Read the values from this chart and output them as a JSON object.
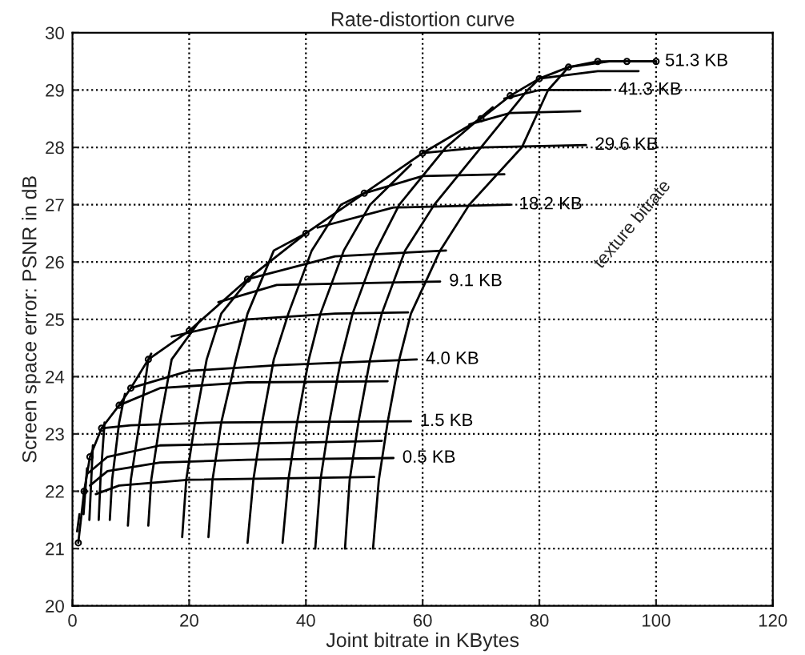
{
  "chart_data": {
    "type": "line",
    "title": "Rate-distortion curve",
    "xlabel": "Joint bitrate in KBytes",
    "ylabel": "Screen space error: PSNR in dB",
    "xlim": [
      0,
      120
    ],
    "ylim": [
      20,
      30
    ],
    "xticks": [
      0,
      20,
      40,
      60,
      80,
      100,
      120
    ],
    "yticks": [
      20,
      21,
      22,
      23,
      24,
      25,
      26,
      27,
      28,
      29,
      30
    ],
    "grid": true,
    "legend": false,
    "series": [
      {
        "color": "#000000",
        "marker": "circle",
        "x": [
          1,
          2,
          3,
          5,
          8,
          10,
          13,
          20,
          30,
          40,
          50,
          60,
          70,
          75,
          80,
          85,
          90,
          95,
          100
        ],
        "values": [
          21.1,
          22,
          22.6,
          23.1,
          23.5,
          23.8,
          24.3,
          24.8,
          25.7,
          26.5,
          27.2,
          27.9,
          28.5,
          28.9,
          29.2,
          29.4,
          29.5,
          29.5,
          29.5
        ]
      },
      {
        "color": "#000000",
        "x": [
          4,
          8,
          20,
          51.7
        ],
        "values": [
          21.95,
          22.1,
          22.2,
          22.25
        ]
      },
      {
        "name": "0.5 KB",
        "color": "#000000",
        "x": [
          3,
          6,
          15,
          30,
          55
        ],
        "values": [
          22.1,
          22.35,
          22.5,
          22.55,
          22.58
        ]
      },
      {
        "color": "#000000",
        "x": [
          2.5,
          6,
          15,
          53
        ],
        "values": [
          22.3,
          22.6,
          22.8,
          22.88
        ]
      },
      {
        "name": "1.5 KB",
        "color": "#000000",
        "x": [
          5,
          10,
          25,
          58
        ],
        "values": [
          23.1,
          23.15,
          23.2,
          23.22
        ]
      },
      {
        "color": "#000000",
        "x": [
          8,
          15,
          30,
          54
        ],
        "values": [
          23.5,
          23.8,
          23.9,
          23.92
        ]
      },
      {
        "name": "4.0 KB",
        "color": "#000000",
        "x": [
          10,
          20,
          35,
          59
        ],
        "values": [
          23.8,
          24.1,
          24.2,
          24.3
        ]
      },
      {
        "color": "#000000",
        "x": [
          17,
          30,
          45,
          57.5
        ],
        "values": [
          24.7,
          25.0,
          25.1,
          25.12
        ]
      },
      {
        "name": "9.1 KB",
        "color": "#000000",
        "x": [
          25,
          35,
          63
        ],
        "values": [
          25.3,
          25.6,
          25.66
        ]
      },
      {
        "color": "#000000",
        "x": [
          30,
          45,
          64
        ],
        "values": [
          25.7,
          26.1,
          26.2
        ]
      },
      {
        "name": "18.2 KB",
        "color": "#000000",
        "x": [
          42,
          55,
          75
        ],
        "values": [
          26.6,
          26.95,
          27.0
        ]
      },
      {
        "color": "#000000",
        "x": [
          50,
          60,
          74
        ],
        "values": [
          27.2,
          27.5,
          27.53
        ]
      },
      {
        "name": "29.6 KB",
        "color": "#000000",
        "x": [
          60,
          70,
          88
        ],
        "values": [
          27.9,
          28.0,
          28.04
        ]
      },
      {
        "color": "#000000",
        "x": [
          68,
          75,
          87
        ],
        "values": [
          28.4,
          28.6,
          28.63
        ]
      },
      {
        "name": "41.3 KB",
        "color": "#000000",
        "x": [
          74,
          80,
          92
        ],
        "values": [
          28.85,
          29.0,
          29.0
        ]
      },
      {
        "color": "#000000",
        "x": [
          80,
          90,
          97
        ],
        "values": [
          29.2,
          29.33,
          29.33
        ]
      },
      {
        "name": "51.3 KB",
        "color": "#000000",
        "x": [
          85,
          92,
          100
        ],
        "values": [
          29.4,
          29.5,
          29.5
        ]
      },
      {
        "color": "#000000",
        "x": [
          51.5,
          52.5,
          54,
          56,
          58,
          63,
          68,
          77,
          81.5,
          85
        ],
        "values": [
          21.0,
          22.2,
          23.2,
          24.3,
          25.1,
          26.2,
          27.0,
          28.0,
          29.0,
          29.4
        ]
      },
      {
        "color": "#000000",
        "x": [
          46.7,
          47.5,
          49,
          51,
          53,
          57,
          62,
          70,
          78,
          80
        ],
        "values": [
          21.0,
          22.2,
          23.2,
          24.3,
          25.1,
          26.2,
          27.0,
          28.0,
          29.0,
          29.2
        ]
      },
      {
        "color": "#000000",
        "x": [
          41.6,
          42.5,
          44,
          46,
          48,
          52,
          56,
          64,
          72
        ],
        "values": [
          21.0,
          22.2,
          23.2,
          24.3,
          25.1,
          26.2,
          27.0,
          28.0,
          28.7
        ]
      },
      {
        "color": "#000000",
        "x": [
          36,
          37,
          38.5,
          40.5,
          42.5,
          46.5,
          51,
          58
        ],
        "values": [
          21.1,
          22.2,
          23.2,
          24.3,
          25.1,
          26.2,
          27.0,
          27.7
        ]
      },
      {
        "color": "#000000",
        "x": [
          30,
          31,
          32.5,
          34.5,
          37,
          41,
          46,
          50
        ],
        "values": [
          21.1,
          22.2,
          23.2,
          24.3,
          25.1,
          26.2,
          27.0,
          27.2
        ]
      },
      {
        "color": "#000000",
        "x": [
          23.3,
          24,
          25.5,
          28,
          30,
          34.5,
          40
        ],
        "values": [
          21.2,
          22.2,
          23.2,
          24.3,
          25.1,
          26.2,
          26.5
        ]
      },
      {
        "color": "#000000",
        "x": [
          18.8,
          19.5,
          21,
          23,
          25.5,
          31
        ],
        "values": [
          21.2,
          22.2,
          23.2,
          24.3,
          25.1,
          25.8
        ]
      },
      {
        "color": "#000000",
        "x": [
          13,
          13.5,
          15,
          17,
          22
        ],
        "values": [
          21.4,
          22.2,
          23.2,
          24.3,
          25.0
        ]
      },
      {
        "color": "#000000",
        "x": [
          9.5,
          10,
          11.5,
          13,
          13.5
        ],
        "values": [
          21.4,
          22.2,
          23.2,
          24.3,
          24.4
        ]
      },
      {
        "color": "#000000",
        "x": [
          6.4,
          6.8,
          8,
          9
        ],
        "values": [
          21.5,
          22.2,
          23.2,
          23.7
        ]
      },
      {
        "color": "#000000",
        "x": [
          4.5,
          4.8,
          5.5
        ],
        "values": [
          21.5,
          22.2,
          23.2
        ]
      },
      {
        "color": "#000000",
        "x": [
          2.9,
          3.5
        ],
        "values": [
          21.5,
          22.8
        ]
      },
      {
        "color": "#000000",
        "x": [
          1.9,
          2.5
        ],
        "values": [
          21.6,
          22.4
        ]
      },
      {
        "color": "#000000",
        "x": [
          0.8,
          1.2
        ],
        "values": [
          21.3,
          21.6
        ]
      }
    ],
    "annotations": [
      "texture bitrate"
    ]
  }
}
